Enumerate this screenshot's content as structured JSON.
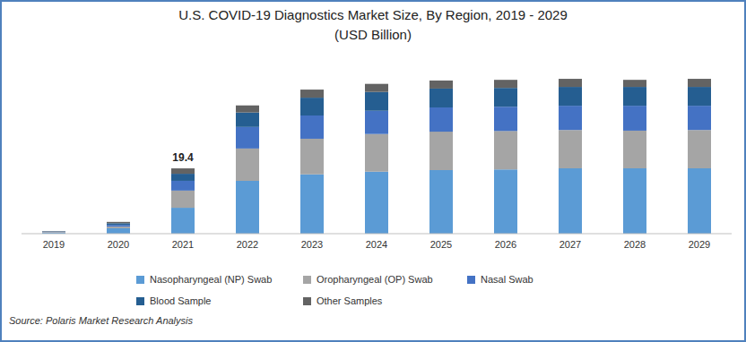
{
  "chart_data": {
    "type": "bar",
    "title": "U.S. COVID-19 Diagnostics Market Size, By Region, 2019 - 2029",
    "subtitle": "(USD Billion)",
    "source": "Source: Polaris Market Research Analysis",
    "categories": [
      "2019",
      "2020",
      "2021",
      "2022",
      "2023",
      "2024",
      "2025",
      "2026",
      "2027",
      "2028",
      "2029"
    ],
    "series": [
      {
        "name": "Nasopharyngeal (NP) Swab",
        "color": "#5b9bd5",
        "values": [
          0.3,
          1.6,
          7.7,
          15.7,
          17.6,
          18.4,
          18.9,
          19.1,
          19.4,
          19.4,
          19.4
        ]
      },
      {
        "name": "Oropharyngeal (OP) Swab",
        "color": "#a5a5a5",
        "values": [
          0.2,
          0.5,
          5.1,
          9.6,
          10.6,
          11.2,
          11.4,
          11.4,
          11.4,
          11.2,
          11.4
        ]
      },
      {
        "name": "Nasal Swab",
        "color": "#4472c4",
        "values": [
          0.1,
          0.5,
          2.9,
          6.4,
          6.9,
          6.9,
          7.2,
          7.2,
          7.2,
          7.4,
          7.2
        ]
      },
      {
        "name": "Blood Sample",
        "color": "#255e91",
        "values": [
          0.1,
          0.5,
          2.1,
          4.3,
          5.3,
          5.6,
          5.6,
          5.6,
          5.6,
          5.6,
          5.6
        ]
      },
      {
        "name": "Other Samples",
        "color": "#636363",
        "values": [
          0.1,
          0.4,
          1.6,
          2.1,
          2.4,
          2.4,
          2.4,
          2.4,
          2.4,
          2.1,
          2.4
        ]
      }
    ],
    "annotations": [
      {
        "text": "19.4",
        "x": "2021",
        "y": 19.4
      }
    ],
    "ylim": [
      0,
      50
    ],
    "stacked": true,
    "grid": false,
    "legend": "bottom",
    "tick_labels": "x"
  }
}
